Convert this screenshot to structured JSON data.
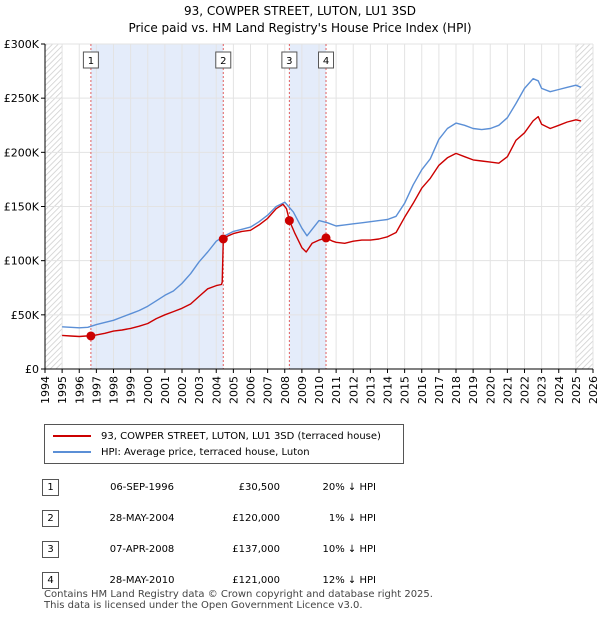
{
  "title_line1": "93, COWPER STREET, LUTON, LU1 3SD",
  "title_line2": "Price paid vs. HM Land Registry's House Price Index (HPI)",
  "chart_data": {
    "type": "line",
    "title": "93, COWPER STREET, LUTON, LU1 3SD — Price paid vs. HM Land Registry's House Price Index (HPI)",
    "xlabel": "",
    "ylabel": "",
    "xlim": [
      1994,
      2026
    ],
    "ylim": [
      0,
      300000
    ],
    "x_ticks": [
      "1994",
      "1995",
      "1996",
      "1997",
      "1998",
      "1999",
      "2000",
      "2001",
      "2002",
      "2003",
      "2004",
      "2005",
      "2006",
      "2007",
      "2008",
      "2009",
      "2010",
      "2011",
      "2012",
      "2013",
      "2014",
      "2015",
      "2016",
      "2017",
      "2018",
      "2019",
      "2020",
      "2021",
      "2022",
      "2023",
      "2024",
      "2025",
      "2026"
    ],
    "y_ticks": [
      {
        "value": 0,
        "label": "£0"
      },
      {
        "value": 50000,
        "label": "£50K"
      },
      {
        "value": 100000,
        "label": "£100K"
      },
      {
        "value": 150000,
        "label": "£150K"
      },
      {
        "value": 200000,
        "label": "£200K"
      },
      {
        "value": 250000,
        "label": "£250K"
      },
      {
        "value": 300000,
        "label": "£300K"
      }
    ],
    "grid": true,
    "series": [
      {
        "name": "93, COWPER STREET, LUTON, LU1 3SD (terraced house)",
        "color": "#cc0000",
        "x": [
          1995.0,
          1995.5,
          1996.0,
          1996.4,
          1996.68,
          1997.0,
          1997.5,
          1998.0,
          1998.5,
          1999.0,
          1999.5,
          2000.0,
          2000.5,
          2001.0,
          2001.5,
          2002.0,
          2002.5,
          2003.0,
          2003.5,
          2004.0,
          2004.3,
          2004.35,
          2004.41,
          2004.7,
          2005.0,
          2005.5,
          2006.0,
          2006.5,
          2007.0,
          2007.5,
          2007.9,
          2008.1,
          2008.27,
          2008.6,
          2009.0,
          2009.25,
          2009.6,
          2010.0,
          2010.41,
          2010.8,
          2011.0,
          2011.5,
          2012.0,
          2012.5,
          2013.0,
          2013.5,
          2014.0,
          2014.5,
          2015.0,
          2015.5,
          2016.0,
          2016.5,
          2017.0,
          2017.5,
          2018.0,
          2018.5,
          2019.0,
          2019.5,
          2020.0,
          2020.5,
          2021.0,
          2021.5,
          2022.0,
          2022.5,
          2022.8,
          2023.0,
          2023.5,
          2024.0,
          2024.5,
          2025.0,
          2025.3
        ],
        "y": [
          31000,
          30500,
          30000,
          30500,
          30500,
          31500,
          33000,
          35000,
          36000,
          37500,
          39500,
          42000,
          46500,
          50000,
          53000,
          56000,
          60000,
          67000,
          74000,
          77000,
          78000,
          80000,
          120000,
          123000,
          125000,
          127000,
          128000,
          133000,
          139000,
          148000,
          152000,
          148000,
          137000,
          125000,
          112000,
          108000,
          116000,
          119000,
          121000,
          118000,
          117000,
          116000,
          118000,
          119000,
          119000,
          120000,
          122000,
          126000,
          140000,
          153000,
          167000,
          176000,
          188000,
          195000,
          199000,
          196000,
          193000,
          192000,
          191000,
          190000,
          196000,
          211000,
          218000,
          229000,
          233000,
          226000,
          222000,
          225000,
          228000,
          230000,
          229000
        ]
      },
      {
        "name": "HPI: Average price, terraced house, Luton",
        "color": "#5b8fd6",
        "x": [
          1995.0,
          1995.5,
          1996.0,
          1996.5,
          1997.0,
          1997.5,
          1998.0,
          1998.5,
          1999.0,
          1999.5,
          2000.0,
          2000.5,
          2001.0,
          2001.5,
          2002.0,
          2002.5,
          2003.0,
          2003.5,
          2004.0,
          2004.5,
          2005.0,
          2005.5,
          2006.0,
          2006.5,
          2007.0,
          2007.5,
          2008.0,
          2008.5,
          2009.0,
          2009.3,
          2009.6,
          2010.0,
          2010.5,
          2011.0,
          2011.5,
          2012.0,
          2012.5,
          2013.0,
          2013.5,
          2014.0,
          2014.5,
          2015.0,
          2015.5,
          2016.0,
          2016.5,
          2017.0,
          2017.5,
          2018.0,
          2018.5,
          2019.0,
          2019.5,
          2020.0,
          2020.5,
          2021.0,
          2021.5,
          2022.0,
          2022.5,
          2022.8,
          2023.0,
          2023.5,
          2024.0,
          2024.5,
          2025.0,
          2025.3
        ],
        "y": [
          39000,
          38500,
          38000,
          38500,
          41000,
          43000,
          45000,
          48000,
          51000,
          54000,
          58000,
          63000,
          68000,
          72000,
          79000,
          88000,
          99000,
          108000,
          118000,
          123000,
          127000,
          129000,
          131000,
          136000,
          142000,
          150000,
          154000,
          145000,
          130000,
          123000,
          129000,
          137000,
          135000,
          132000,
          133000,
          134000,
          135000,
          136000,
          137000,
          138000,
          141000,
          153000,
          170000,
          184000,
          194000,
          212000,
          222000,
          227000,
          225000,
          222000,
          221000,
          222000,
          225000,
          232000,
          245000,
          259000,
          268000,
          266000,
          259000,
          256000,
          258000,
          260000,
          262000,
          260000
        ]
      }
    ],
    "events": [
      {
        "label": "1",
        "x": 1996.68,
        "price": 30500
      },
      {
        "label": "2",
        "x": 2004.41,
        "price": 120000
      },
      {
        "label": "3",
        "x": 2008.27,
        "price": 137000
      },
      {
        "label": "4",
        "x": 2010.41,
        "price": 121000
      }
    ],
    "shaded_ranges": [
      [
        1996.68,
        2004.41
      ],
      [
        2008.27,
        2010.41
      ]
    ],
    "hatched_ranges": [
      [
        1994,
        1995
      ],
      [
        2025,
        2026
      ]
    ]
  },
  "legend": {
    "items": [
      {
        "label": "93, COWPER STREET, LUTON, LU1 3SD (terraced house)",
        "color": "#cc0000"
      },
      {
        "label": "HPI: Average price, terraced house, Luton",
        "color": "#5b8fd6"
      }
    ]
  },
  "sales": [
    {
      "num": "1",
      "date": "06-SEP-1996",
      "price": "£30,500",
      "hpi": "20% ↓ HPI"
    },
    {
      "num": "2",
      "date": "28-MAY-2004",
      "price": "£120,000",
      "hpi": "1% ↓ HPI"
    },
    {
      "num": "3",
      "date": "07-APR-2008",
      "price": "£137,000",
      "hpi": "10% ↓ HPI"
    },
    {
      "num": "4",
      "date": "28-MAY-2010",
      "price": "£121,000",
      "hpi": "12% ↓ HPI"
    }
  ],
  "footer": {
    "line1": "Contains HM Land Registry data © Crown copyright and database right 2025.",
    "line2": "This data is licensed under the Open Government Licence v3.0."
  }
}
